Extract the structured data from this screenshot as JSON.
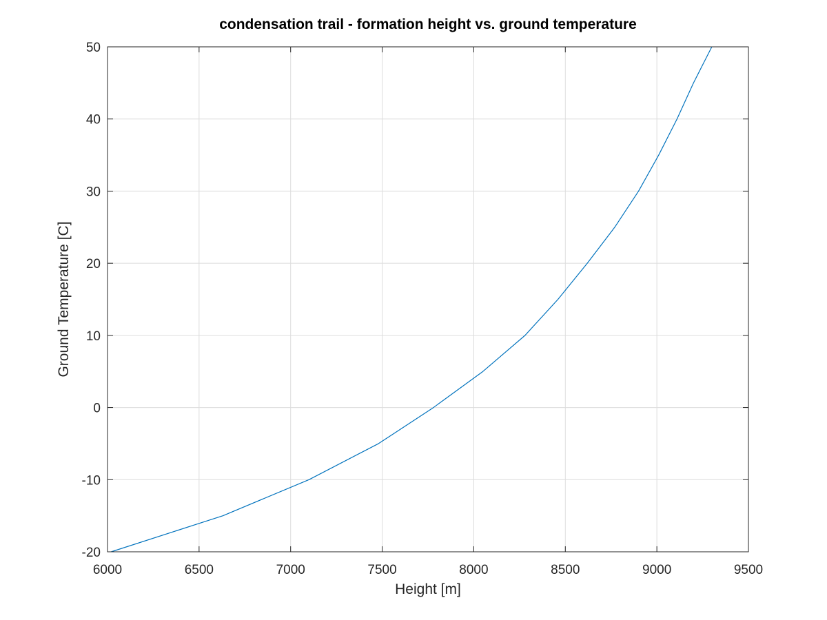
{
  "chart_data": {
    "type": "line",
    "title": "condensation trail - formation height vs. ground temperature",
    "xlabel": "Height [m]",
    "ylabel": "Ground Temperature [C]",
    "xlim": [
      6000,
      9500
    ],
    "ylim": [
      -20,
      50
    ],
    "xticks": [
      6000,
      6500,
      7000,
      7500,
      8000,
      8500,
      9000,
      9500
    ],
    "yticks": [
      -20,
      -10,
      0,
      10,
      20,
      30,
      40,
      50
    ],
    "xtick_labels": [
      "6000",
      "6500",
      "7000",
      "7500",
      "8000",
      "8500",
      "9000",
      "9500"
    ],
    "ytick_labels": [
      "-20",
      "-10",
      "0",
      "10",
      "20",
      "30",
      "40",
      "50"
    ],
    "grid": true,
    "box": true,
    "series": [
      {
        "color": "#0072bd",
        "x": [
          6020,
          6630,
          7100,
          7480,
          7780,
          8050,
          8280,
          8460,
          8620,
          8770,
          8900,
          9010,
          9110,
          9200,
          9300
        ],
        "y": [
          -20,
          -15,
          -10,
          -5,
          0,
          5,
          10,
          15,
          20,
          25,
          30,
          35,
          40,
          45,
          50
        ]
      }
    ]
  }
}
